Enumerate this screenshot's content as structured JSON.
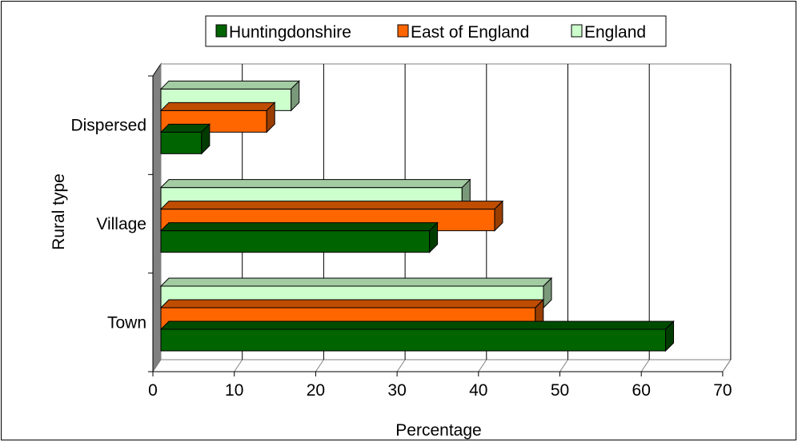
{
  "chart_data": {
    "type": "bar",
    "orientation": "horizontal",
    "categories": [
      "Town",
      "Village",
      "Dispersed"
    ],
    "series": [
      {
        "name": "Huntingdonshire",
        "values": [
          62,
          33,
          5
        ],
        "color": "#006400"
      },
      {
        "name": "East of England",
        "values": [
          46,
          41,
          13
        ],
        "color": "#ff6600"
      },
      {
        "name": "England",
        "values": [
          47,
          37,
          16
        ],
        "color": "#ccffcc"
      }
    ],
    "title": "",
    "xlabel": "Percentage",
    "ylabel": "Rural type",
    "xlim": [
      0,
      70
    ],
    "xticks": [
      "0",
      "10",
      "20",
      "30",
      "40",
      "50",
      "60",
      "70"
    ],
    "grid": true,
    "legend_position": "top",
    "style": "3d"
  }
}
